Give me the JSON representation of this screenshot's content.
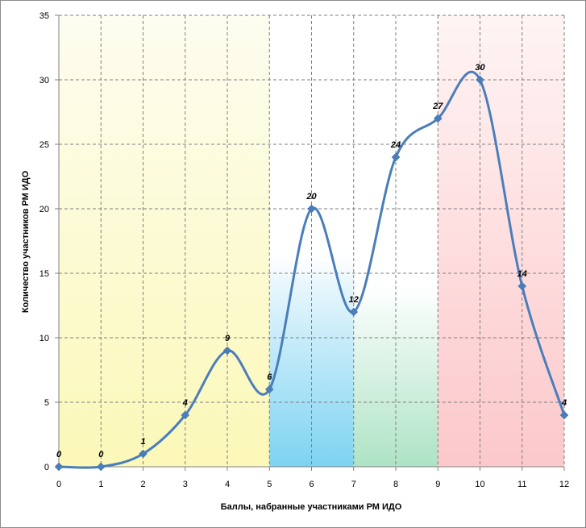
{
  "chart_data": {
    "type": "line",
    "smooth": true,
    "title": "",
    "xlabel": "Баллы, набранные участниками РМ ИДО",
    "ylabel": "Количество участников РМ ИДО",
    "x": [
      0,
      1,
      2,
      3,
      4,
      5,
      6,
      7,
      8,
      9,
      10,
      11,
      12
    ],
    "series": [
      {
        "values": [
          0,
          0,
          1,
          4,
          9,
          6,
          20,
          12,
          24,
          27,
          30,
          14,
          4
        ],
        "color": "#4a7ebb",
        "marker": "diamond"
      }
    ],
    "data_labels": [
      "0",
      "0",
      "1",
      "4",
      "9",
      "6",
      "20",
      "12",
      "24",
      "27",
      "30",
      "14",
      "4"
    ],
    "xlim": [
      0,
      12
    ],
    "ylim": [
      0,
      35
    ],
    "x_ticks": [
      "0",
      "1",
      "2",
      "3",
      "4",
      "5",
      "6",
      "7",
      "8",
      "9",
      "10",
      "11",
      "12"
    ],
    "y_ticks": [
      "0",
      "5",
      "10",
      "15",
      "20",
      "25",
      "30",
      "35"
    ],
    "grid": "dashed",
    "legend": "none",
    "background_bands": [
      {
        "x_range": [
          0,
          5
        ],
        "color_top": "#fdfdf0",
        "color_bottom": "#fbf8b8"
      },
      {
        "x_range": [
          5,
          7
        ],
        "color_top": "#ffffff",
        "color_bottom": "#7dd3f2"
      },
      {
        "x_range": [
          7,
          9
        ],
        "color_top": "#ffffff",
        "color_bottom": "#aee3c6"
      },
      {
        "x_range": [
          9,
          12
        ],
        "color_top": "#fff4f4",
        "color_bottom": "#fcc8ca"
      }
    ]
  }
}
